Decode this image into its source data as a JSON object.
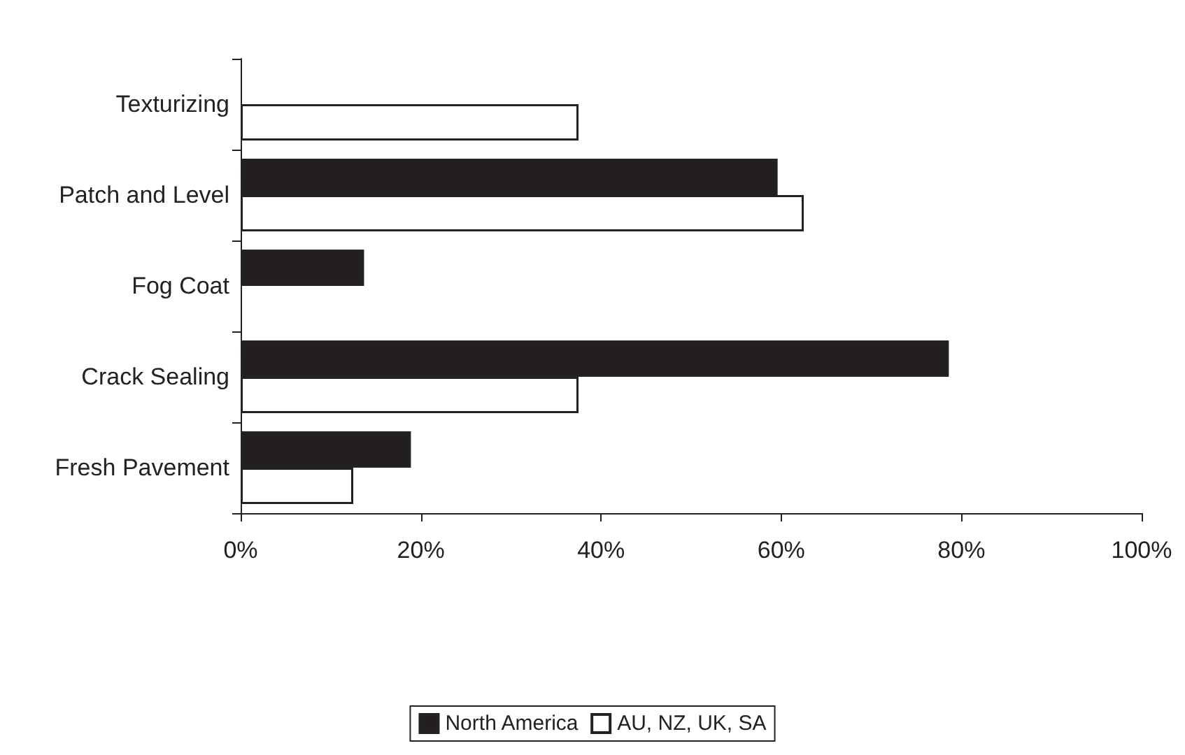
{
  "chart_data": {
    "type": "bar",
    "orientation": "horizontal",
    "categories": [
      "Texturizing",
      "Patch and Level",
      "Fog Coat",
      "Crack Sealing",
      "Fresh Pavement"
    ],
    "series": [
      {
        "name": "North America",
        "color": "#231f20",
        "values": [
          null,
          59.6,
          13.7,
          78.6,
          18.9
        ]
      },
      {
        "name": "AU, NZ, UK, SA",
        "color": "#ffffff",
        "values": [
          37.5,
          62.5,
          null,
          37.5,
          12.5
        ]
      }
    ],
    "xlim": [
      0,
      100
    ],
    "xticks": [
      {
        "value": 0,
        "label": "0%"
      },
      {
        "value": 20,
        "label": "20%"
      },
      {
        "value": 40,
        "label": "40%"
      },
      {
        "value": 60,
        "label": "60%"
      },
      {
        "value": 80,
        "label": "80%"
      },
      {
        "value": 100,
        "label": "100%"
      }
    ],
    "grid": false,
    "legend": "bottom"
  }
}
